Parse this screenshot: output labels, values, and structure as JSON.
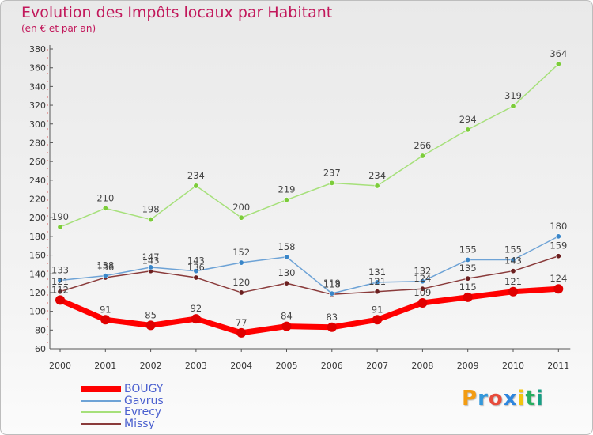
{
  "header": {
    "title": "Evolution des Impôts locaux par Habitant",
    "subtitle": "(en € et par an)"
  },
  "logo": {
    "text": "Proxiti",
    "letters": [
      {
        "ch": "P",
        "color": "#f39c12"
      },
      {
        "ch": "r",
        "color": "#3498db"
      },
      {
        "ch": "o",
        "color": "#e74c3c"
      },
      {
        "ch": "x",
        "color": "#2e86de"
      },
      {
        "ch": "i",
        "color": "#f1c40f"
      },
      {
        "ch": "t",
        "color": "#27ae60"
      },
      {
        "ch": "i",
        "color": "#16a085"
      }
    ]
  },
  "chart_data": {
    "type": "line",
    "title": "Evolution des Impôts locaux par Habitant",
    "subtitle": "(en € et par an)",
    "categories": [
      "2000",
      "2001",
      "2002",
      "2003",
      "2004",
      "2005",
      "2006",
      "2007",
      "2008",
      "2009",
      "2010",
      "2011"
    ],
    "ylim": [
      60,
      380
    ],
    "yticks": [
      60,
      80,
      100,
      120,
      140,
      160,
      180,
      200,
      220,
      240,
      260,
      280,
      300,
      320,
      340,
      360,
      380
    ],
    "grid": false,
    "legend_position": "bottom-left",
    "series": [
      {
        "name": "BOUGY",
        "color": "#ff0000",
        "marker": "#e00000",
        "width": 7,
        "values": [
          112,
          91,
          85,
          92,
          77,
          84,
          83,
          91,
          109,
          115,
          121,
          124
        ]
      },
      {
        "name": "Gavrus",
        "color": "#6ea3d6",
        "marker": "#3a86c8",
        "width": 1.5,
        "values": [
          133,
          138,
          147,
          143,
          152,
          158,
          119,
          131,
          132,
          155,
          155,
          180
        ]
      },
      {
        "name": "Evrecy",
        "color": "#a6e07a",
        "marker": "#7ccc3a",
        "width": 1.5,
        "values": [
          190,
          210,
          198,
          234,
          200,
          219,
          237,
          234,
          266,
          294,
          319,
          364
        ]
      },
      {
        "name": "Missy",
        "color": "#8a3b3b",
        "marker": "#6b1f1f",
        "width": 1.5,
        "values": [
          121,
          136,
          143,
          136,
          120,
          130,
          118,
          121,
          124,
          135,
          143,
          159
        ]
      }
    ]
  }
}
